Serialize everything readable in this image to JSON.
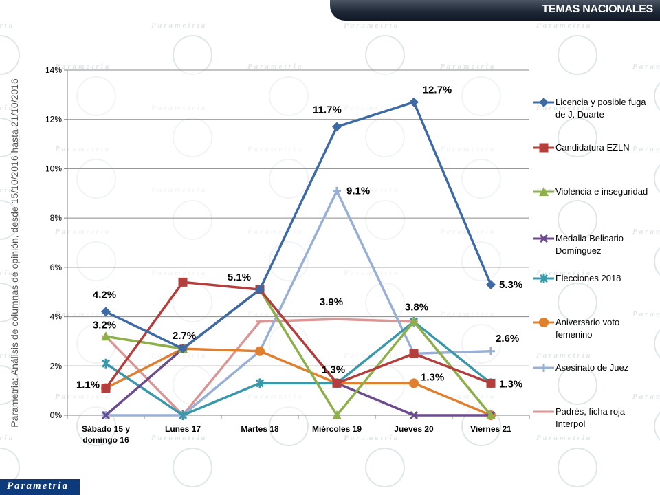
{
  "header": {
    "title": "TEMAS NACIONALES"
  },
  "side_caption": "Parametria: Análisis de columnas de opinión, desde 15/10/2016 hasta  21/10/2016",
  "footer": {
    "logo": "Parametria"
  },
  "watermark": {
    "text": "Parametria",
    "color": "#dfe6ea"
  },
  "chart_data": {
    "type": "line",
    "categories": [
      "Sábado 15 y domingo 16",
      "Lunes 17",
      "Martes 18",
      "Miércoles 19",
      "Jueves 20",
      "Viernes 21"
    ],
    "y_ticks": [
      "0%",
      "2%",
      "4%",
      "6%",
      "8%",
      "10%",
      "12%",
      "14%"
    ],
    "ylim": [
      0,
      14
    ],
    "grid": true,
    "legend_position": "right",
    "series": [
      {
        "name": "Licencia y posible fuga de J. Duarte",
        "color": "#3d6aa5",
        "marker": "diamond",
        "values": [
          4.2,
          2.7,
          5.1,
          11.7,
          12.7,
          5.3
        ]
      },
      {
        "name": "Candidatura EZLN",
        "color": "#b43e3c",
        "marker": "square",
        "values": [
          1.1,
          5.4,
          5.1,
          1.3,
          2.5,
          1.3
        ]
      },
      {
        "name": "Violencia e inseguridad",
        "color": "#8db04a",
        "marker": "triangle",
        "values": [
          3.2,
          2.7,
          5.1,
          0,
          3.8,
          0
        ]
      },
      {
        "name": "Medalla Belisario Domínguez",
        "color": "#6b4a8e",
        "marker": "x",
        "values": [
          0,
          2.7,
          5.1,
          1.3,
          0,
          0
        ]
      },
      {
        "name": "Elecciones 2018",
        "color": "#3a98ab",
        "marker": "asterisk",
        "values": [
          2.1,
          0,
          1.3,
          1.3,
          3.8,
          1.3
        ]
      },
      {
        "name": "Aniversario voto femenino",
        "color": "#e07f2e",
        "marker": "circle",
        "values": [
          1.1,
          2.7,
          2.6,
          1.3,
          1.3,
          0
        ]
      },
      {
        "name": "Asesinato de Juez",
        "color": "#99b0d6",
        "marker": "plus",
        "values": [
          0,
          0,
          2.6,
          9.1,
          2.5,
          2.6
        ]
      },
      {
        "name": "Padrés, ficha roja Interpol",
        "color": "#d99694",
        "marker": "dash",
        "values": [
          3.2,
          0,
          3.8,
          3.9,
          3.8,
          0
        ]
      }
    ],
    "data_labels": [
      {
        "text": "4.2%",
        "category": 0,
        "value": 4.2
      },
      {
        "text": "3.2%",
        "category": 0,
        "value": 3.2
      },
      {
        "text": "1.1%",
        "category": 0,
        "value": 1.1
      },
      {
        "text": "2.7%",
        "category": 1,
        "value": 2.7
      },
      {
        "text": "5.1%",
        "category": 2,
        "value": 5.1
      },
      {
        "text": "11.7%",
        "category": 3,
        "value": 11.7
      },
      {
        "text": "9.1%",
        "category": 3,
        "value": 9.1
      },
      {
        "text": "3.9%",
        "category": 3,
        "value": 3.9
      },
      {
        "text": "1.3%",
        "category": 3,
        "value": 1.3
      },
      {
        "text": "12.7%",
        "category": 4,
        "value": 12.7
      },
      {
        "text": "3.8%",
        "category": 4,
        "value": 3.8
      },
      {
        "text": "1.3%",
        "category": 4,
        "value": 1.3
      },
      {
        "text": "5.3%",
        "category": 5,
        "value": 5.3
      },
      {
        "text": "2.6%",
        "category": 5,
        "value": 2.6
      },
      {
        "text": "1.3%",
        "category": 5,
        "value": 1.3
      }
    ]
  }
}
